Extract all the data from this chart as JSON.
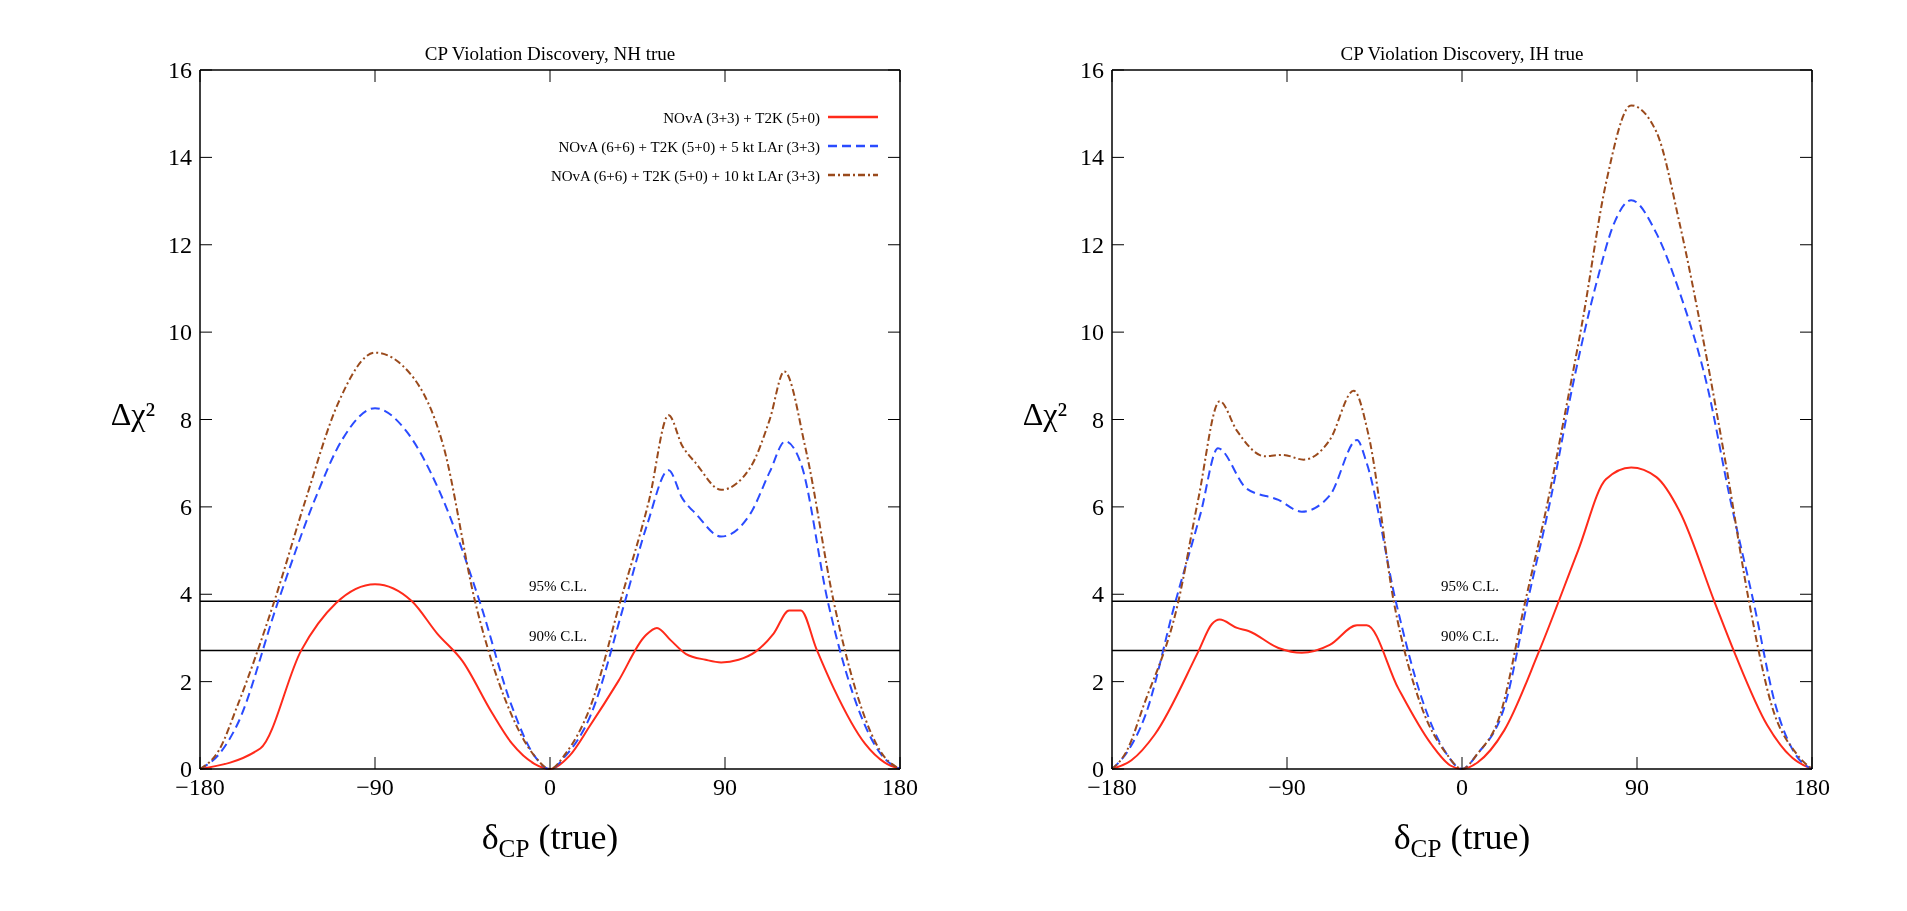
{
  "chart_data": [
    {
      "type": "line",
      "title": "CP Violation Discovery, NH true",
      "xlabel": "δ$_{CP}$ (true)",
      "ylabel": "Δχ²",
      "xlim": [
        -180,
        180
      ],
      "xticks": [
        -180,
        -90,
        0,
        90,
        180
      ],
      "ylim": [
        0,
        16
      ],
      "yticks": [
        0,
        2,
        4,
        6,
        8,
        10,
        12,
        14,
        16
      ],
      "legend": "top right",
      "grid": false,
      "ref_lines": [
        {
          "axis": "y",
          "value": 3.84,
          "label": "95% C.L.",
          "color": "#000000"
        },
        {
          "axis": "y",
          "value": 2.71,
          "label": "90% C.L.",
          "color": "#000000"
        }
      ],
      "series": [
        {
          "name": "NOvA (3+3) + T2K (5+0)",
          "color": "#ff2a1a",
          "line_style": "solid",
          "x": [
            -180,
            -149,
            -128,
            -110,
            -90,
            -71,
            -58,
            -45,
            -30,
            -19.5,
            -8,
            0,
            10,
            20.7,
            35,
            49,
            55,
            62,
            70,
            80,
            88,
            97,
            105.6,
            115,
            123,
            129,
            137,
            146,
            162,
            172,
            180
          ],
          "values": [
            0,
            0.47,
            2.71,
            3.8,
            4.23,
            3.84,
            3.1,
            2.47,
            1.3,
            0.58,
            0.12,
            0,
            0.3,
            1.0,
            2.0,
            3.05,
            3.23,
            2.95,
            2.63,
            2.5,
            2.44,
            2.5,
            2.68,
            3.1,
            3.63,
            3.63,
            2.75,
            1.84,
            0.58,
            0.15,
            0
          ]
        },
        {
          "name": "NOvA (6+6) + T2K (5+0) + 5 kt LAr (3+3)",
          "color": "#2a4bff",
          "line_style": "dashed",
          "x": [
            -180,
            -170,
            -161,
            -140,
            -121,
            -107,
            -90,
            -74,
            -57,
            -36,
            -19.5,
            -8,
            0,
            8,
            20.7,
            38.4,
            50,
            61,
            68,
            75,
            88,
            103,
            113,
            121,
            129,
            143,
            160,
            170,
            180
          ],
          "values": [
            0,
            0.35,
            1.0,
            3.81,
            6.16,
            7.53,
            8.26,
            7.74,
            6.37,
            3.81,
            1.42,
            0.3,
            0,
            0.3,
            1.21,
            3.81,
            5.6,
            6.84,
            6.2,
            5.84,
            5.32,
            5.84,
            6.8,
            7.5,
            7.0,
            3.81,
            1.21,
            0.35,
            0
          ]
        },
        {
          "name": "NOvA (6+6) + T2K (5+0) + 10 kt LAr (3+3)",
          "color": "#9a4a1c",
          "line_style": "dashdot",
          "x": [
            -180,
            -170,
            -161,
            -142,
            -125.7,
            -109,
            -90,
            -71,
            -55,
            -38.4,
            -19.5,
            -8,
            0,
            8,
            20.7,
            36,
            51,
            61,
            68,
            75,
            88,
            103,
            113,
            120.5,
            131.6,
            146,
            160,
            170,
            180
          ],
          "values": [
            0,
            0.45,
            1.42,
            3.81,
            6.16,
            8.37,
            9.53,
            9.0,
            7.42,
            3.81,
            1.21,
            0.3,
            0,
            0.35,
            1.42,
            3.81,
            6.16,
            8.1,
            7.4,
            7.0,
            6.39,
            6.9,
            8.0,
            9.1,
            7.3,
            3.81,
            1.42,
            0.4,
            0
          ]
        }
      ]
    },
    {
      "type": "line",
      "title": "CP Violation Discovery, IH true",
      "xlabel": "δ$_{CP}$ (true)",
      "ylabel": "Δχ²",
      "xlim": [
        -180,
        180
      ],
      "xticks": [
        -180,
        -90,
        0,
        90,
        180
      ],
      "ylim": [
        0,
        16
      ],
      "yticks": [
        0,
        2,
        4,
        6,
        8,
        10,
        12,
        14,
        16
      ],
      "legend": false,
      "grid": false,
      "ref_lines": [
        {
          "axis": "y",
          "value": 3.84,
          "label": "95% C.L.",
          "color": "#000000"
        },
        {
          "axis": "y",
          "value": 2.71,
          "label": "90% C.L.",
          "color": "#000000"
        }
      ],
      "series": [
        {
          "color": "#ff2a1a",
          "line_style": "solid",
          "x": [
            -180,
            -170,
            -158,
            -135.7,
            -128.6,
            -124.6,
            -115.7,
            -109.8,
            -94.4,
            -82.4,
            -68,
            -54,
            -49,
            -32.7,
            -16,
            -6,
            0,
            8,
            21.8,
            39.5,
            59.7,
            74,
            87,
            100,
            112,
            130,
            140,
            157,
            170,
            180
          ],
          "values": [
            0,
            0.2,
            0.79,
            2.68,
            3.32,
            3.42,
            3.23,
            3.16,
            2.77,
            2.66,
            2.84,
            3.29,
            3.29,
            1.84,
            0.58,
            0.08,
            0,
            0.15,
            0.89,
            2.68,
            5.0,
            6.63,
            6.9,
            6.68,
            5.89,
            3.81,
            2.68,
            1.0,
            0.25,
            0
          ]
        },
        {
          "color": "#2a4bff",
          "line_style": "dashed",
          "x": [
            -180,
            -172,
            -163,
            -147.5,
            -134.5,
            -125.5,
            -110.8,
            -94.4,
            -82.4,
            -68,
            -54,
            -49,
            -33.9,
            -20.8,
            -8,
            0,
            8,
            21.8,
            33.6,
            45.5,
            57,
            69,
            78.6,
            87,
            100,
            112,
            126,
            138,
            150,
            161.5,
            172,
            180
          ],
          "values": [
            0,
            0.4,
            1.21,
            3.81,
            5.84,
            7.34,
            6.42,
            6.16,
            5.89,
            6.26,
            7.53,
            7.0,
            3.81,
            1.63,
            0.35,
            0,
            0.35,
            1.42,
            3.81,
            6.16,
            8.79,
            11.1,
            12.53,
            13.02,
            12.26,
            10.9,
            8.79,
            6.16,
            3.81,
            1.42,
            0.3,
            0
          ]
        },
        {
          "color": "#9a4a1c",
          "line_style": "dashdot",
          "x": [
            -180,
            -172,
            -164,
            -146,
            -135.7,
            -124.6,
            -115.7,
            -101.5,
            -92,
            -81.5,
            -68,
            -55.7,
            -48,
            -35,
            -20.8,
            -8,
            0,
            8,
            19.4,
            32.4,
            44.3,
            52.6,
            62,
            74,
            87,
            100,
            112,
            124,
            136,
            147.7,
            159.5,
            172,
            180
          ],
          "values": [
            0,
            0.45,
            1.42,
            3.81,
            6.16,
            8.42,
            7.74,
            7.16,
            7.19,
            7.08,
            7.53,
            8.66,
            7.63,
            3.81,
            1.42,
            0.35,
            0,
            0.35,
            1.21,
            3.81,
            6.16,
            8.05,
            10.26,
            13.4,
            15.19,
            14.58,
            12.47,
            9.84,
            6.9,
            3.81,
            1.42,
            0.35,
            0
          ]
        }
      ]
    }
  ]
}
